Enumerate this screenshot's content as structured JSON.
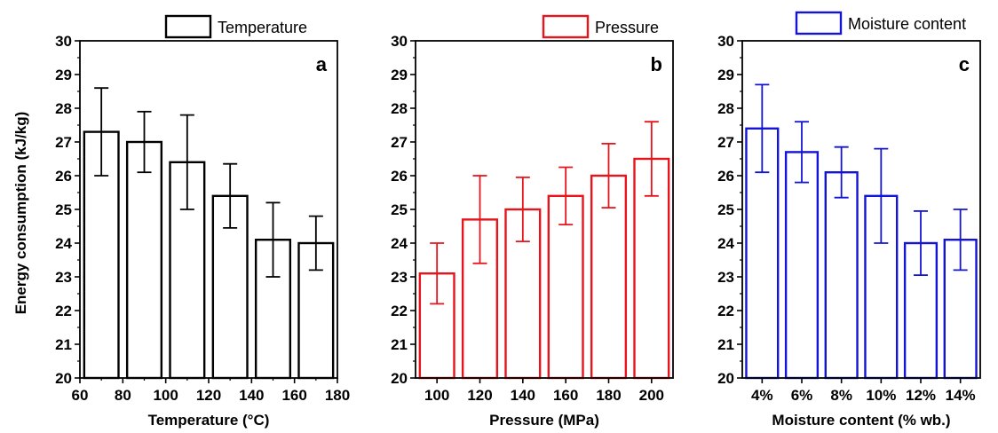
{
  "figure": {
    "shared_ylabel": "Energy consumption (kJ/kg)"
  },
  "chart_data": [
    {
      "type": "bar",
      "panel_label": "a",
      "legend": "Temperature",
      "color": "#000000",
      "xlabel": "Temperature (°C)",
      "ylabel": "Energy consumption (kJ/kg)",
      "xlim": [
        60,
        180
      ],
      "x_ticks": [
        "60",
        "80",
        "100",
        "120",
        "140",
        "160",
        "180"
      ],
      "ylim": [
        20,
        30
      ],
      "y_ticks": [
        "20",
        "21",
        "22",
        "23",
        "24",
        "25",
        "26",
        "27",
        "28",
        "29",
        "30"
      ],
      "x": [
        70,
        90,
        110,
        130,
        150,
        170
      ],
      "values": [
        27.3,
        27.0,
        26.4,
        25.4,
        24.1,
        24.0
      ],
      "errors": [
        1.3,
        0.9,
        1.4,
        0.95,
        1.1,
        0.8
      ],
      "grid": false,
      "legend_position": "top"
    },
    {
      "type": "bar",
      "panel_label": "b",
      "legend": "Pressure",
      "color": "#e8141c",
      "xlabel": "Pressure (MPa)",
      "ylim": [
        20,
        30
      ],
      "y_ticks": [
        "20",
        "21",
        "22",
        "23",
        "24",
        "25",
        "26",
        "27",
        "28",
        "29",
        "30"
      ],
      "categories": [
        "100",
        "120",
        "140",
        "160",
        "180",
        "200"
      ],
      "values": [
        23.1,
        24.7,
        25.0,
        25.4,
        26.0,
        26.5
      ],
      "errors": [
        0.9,
        1.3,
        0.95,
        0.85,
        0.95,
        1.1
      ],
      "grid": false,
      "legend_position": "top"
    },
    {
      "type": "bar",
      "panel_label": "c",
      "legend": "Moisture content",
      "color": "#1414d6",
      "xlabel": "Moisture content (% wb.)",
      "ylim": [
        20,
        30
      ],
      "y_ticks": [
        "20",
        "21",
        "22",
        "23",
        "24",
        "25",
        "26",
        "27",
        "28",
        "29",
        "30"
      ],
      "categories": [
        "4%",
        "6%",
        "8%",
        "10%",
        "12%",
        "14%"
      ],
      "values": [
        27.4,
        26.7,
        26.1,
        25.4,
        24.0,
        24.1
      ],
      "errors": [
        1.3,
        0.9,
        0.75,
        1.4,
        0.95,
        0.9
      ],
      "grid": false,
      "legend_position": "top"
    }
  ]
}
